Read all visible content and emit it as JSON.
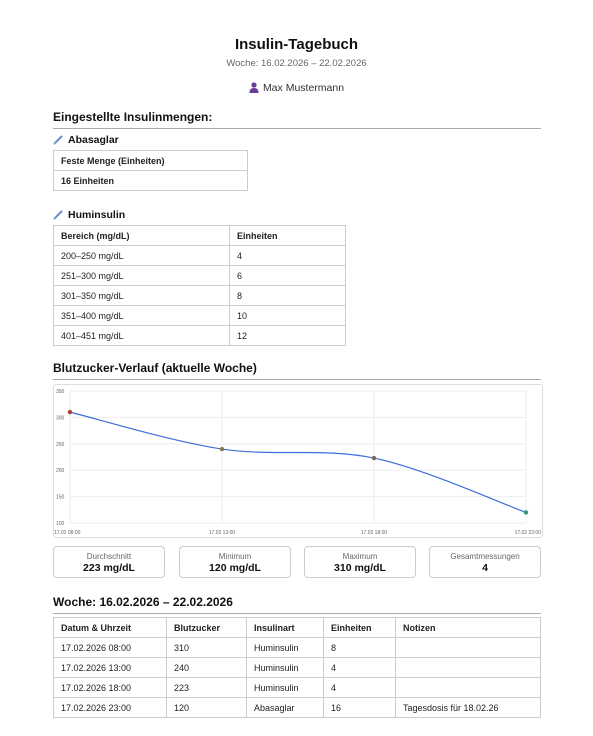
{
  "header": {
    "title": "Insulin-Tagebuch",
    "week": "Woche: 16.02.2026 – 22.02.2026",
    "user": "Max Mustermann"
  },
  "settings": {
    "heading": "Eingestellte Insulinmengen:",
    "abasaglar": {
      "name": "Abasaglar",
      "header": "Feste Menge (Einheiten)",
      "value": "16 Einheiten"
    },
    "huminsulin": {
      "name": "Huminsulin",
      "columns": [
        "Bereich (mg/dL)",
        "Einheiten"
      ],
      "rows": [
        [
          "200–250 mg/dL",
          "4"
        ],
        [
          "251–300 mg/dL",
          "6"
        ],
        [
          "301–350 mg/dL",
          "8"
        ],
        [
          "351–400 mg/dL",
          "10"
        ],
        [
          "401–451 mg/dL",
          "12"
        ]
      ]
    }
  },
  "chart_section": {
    "heading": "Blutzucker-Verlauf (aktuelle Woche)"
  },
  "chart_data": {
    "type": "line",
    "title": "",
    "xlabel": "",
    "ylabel": "",
    "categories": [
      "17.02 08:00",
      "17.02 13:00",
      "17.02 18:00",
      "17.02 23:00"
    ],
    "series": [
      {
        "values": [
          310,
          240,
          223,
          120
        ],
        "color": "#3b6fd8"
      }
    ],
    "point_colors": [
      "#b03a3a",
      "#8a7a4a",
      "#7a6a5a",
      "#2a9a7a"
    ],
    "yticks": [
      100,
      150,
      200,
      250,
      300,
      350
    ],
    "ylim": [
      100,
      350
    ],
    "grid": true
  },
  "stats": [
    {
      "label": "Durchschnitt",
      "value": "223 mg/dL"
    },
    {
      "label": "Minimum",
      "value": "120 mg/dL"
    },
    {
      "label": "Maximum",
      "value": "310 mg/dL"
    },
    {
      "label": "Gesamtmessungen",
      "value": "4"
    }
  ],
  "entries": {
    "heading": "Woche: 16.02.2026 – 22.02.2026",
    "columns": [
      "Datum & Uhrzeit",
      "Blutzucker",
      "Insulinart",
      "Einheiten",
      "Notizen"
    ],
    "rows": [
      [
        "17.02.2026 08:00",
        "310",
        "Huminsulin",
        "8",
        ""
      ],
      [
        "17.02.2026 13:00",
        "240",
        "Huminsulin",
        "4",
        ""
      ],
      [
        "17.02.2026 18:00",
        "223",
        "Huminsulin",
        "4",
        ""
      ],
      [
        "17.02.2026 23:00",
        "120",
        "Abasaglar",
        "16",
        "Tagesdosis für 18.02.26"
      ]
    ]
  },
  "icons": {
    "user": "user-icon",
    "syringe": "syringe-icon"
  },
  "colors": {
    "accent": "#3b6fd8",
    "user_icon": "#6a3d9a",
    "syringe": "#6a8fc8"
  }
}
